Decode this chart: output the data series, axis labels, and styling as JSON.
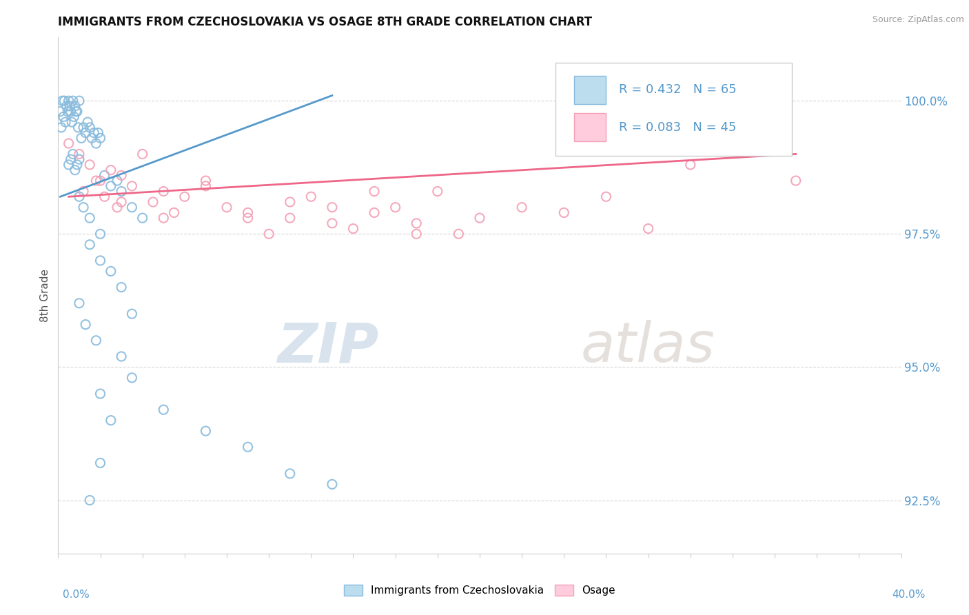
{
  "title": "IMMIGRANTS FROM CZECHOSLOVAKIA VS OSAGE 8TH GRADE CORRELATION CHART",
  "source": "Source: ZipAtlas.com",
  "ylabel": "8th Grade",
  "ytick_values": [
    92.5,
    95.0,
    97.5,
    100.0
  ],
  "legend_label_blue": "Immigrants from Czechoslovakia",
  "legend_label_pink": "Osage",
  "blue_color": "#88BBDD",
  "pink_color": "#F4A0B5",
  "blue_line_color": "#5599CC",
  "pink_line_color": "#EE6688",
  "blue_R": 0.432,
  "blue_N": 65,
  "pink_R": 0.083,
  "pink_N": 45,
  "xlim": [
    0,
    40
  ],
  "ylim": [
    91.5,
    101.2
  ],
  "blue_scatter_x": [
    0.1,
    0.2,
    0.3,
    0.4,
    0.5,
    0.6,
    0.7,
    0.8,
    0.9,
    1.0,
    0.15,
    0.25,
    0.35,
    0.45,
    0.55,
    0.65,
    0.75,
    0.85,
    0.95,
    1.1,
    1.2,
    1.3,
    1.4,
    1.5,
    1.6,
    1.7,
    1.8,
    1.9,
    2.0,
    0.5,
    0.6,
    0.7,
    0.8,
    0.9,
    1.0,
    2.2,
    2.5,
    2.8,
    3.0,
    3.5,
    4.0,
    1.0,
    1.2,
    1.5,
    2.0,
    1.5,
    2.0,
    2.5,
    3.0,
    1.0,
    1.3,
    1.8,
    2.0,
    3.5,
    5.0,
    7.0,
    9.0,
    11.0,
    13.0,
    1.5,
    2.0,
    2.5,
    3.0,
    3.5
  ],
  "blue_scatter_y": [
    99.8,
    100.0,
    100.0,
    99.9,
    100.0,
    99.8,
    100.0,
    99.9,
    99.8,
    100.0,
    99.5,
    99.7,
    99.6,
    99.8,
    99.9,
    99.6,
    99.7,
    99.8,
    99.5,
    99.3,
    99.5,
    99.4,
    99.6,
    99.5,
    99.3,
    99.4,
    99.2,
    99.4,
    99.3,
    98.8,
    98.9,
    99.0,
    98.7,
    98.8,
    98.9,
    98.6,
    98.4,
    98.5,
    98.3,
    98.0,
    97.8,
    98.2,
    98.0,
    97.8,
    97.5,
    97.3,
    97.0,
    96.8,
    96.5,
    96.2,
    95.8,
    95.5,
    94.5,
    94.8,
    94.2,
    93.8,
    93.5,
    93.0,
    92.8,
    92.5,
    93.2,
    94.0,
    95.2,
    96.0
  ],
  "pink_scatter_x": [
    0.5,
    1.0,
    1.5,
    2.0,
    2.5,
    3.0,
    1.2,
    1.8,
    2.2,
    2.8,
    3.5,
    4.0,
    4.5,
    5.0,
    5.5,
    6.0,
    7.0,
    8.0,
    9.0,
    10.0,
    11.0,
    12.0,
    13.0,
    14.0,
    15.0,
    16.0,
    17.0,
    18.0,
    19.0,
    20.0,
    22.0,
    24.0,
    26.0,
    28.0,
    30.0,
    3.0,
    5.0,
    7.0,
    9.0,
    11.0,
    13.0,
    15.0,
    17.0,
    33.0,
    35.0
  ],
  "pink_scatter_y": [
    99.2,
    99.0,
    98.8,
    98.5,
    98.7,
    98.6,
    98.3,
    98.5,
    98.2,
    98.0,
    98.4,
    99.0,
    98.1,
    98.3,
    97.9,
    98.2,
    98.5,
    98.0,
    97.8,
    97.5,
    97.8,
    98.2,
    98.0,
    97.6,
    97.9,
    98.0,
    97.7,
    98.3,
    97.5,
    97.8,
    98.0,
    97.9,
    98.2,
    97.6,
    98.8,
    98.1,
    97.8,
    98.4,
    97.9,
    98.1,
    97.7,
    98.3,
    97.5,
    99.5,
    98.5
  ],
  "blue_line_x": [
    0.1,
    13.0
  ],
  "blue_line_y": [
    98.2,
    100.1
  ],
  "pink_line_x": [
    0.5,
    35.0
  ],
  "pink_line_y": [
    98.2,
    99.0
  ]
}
